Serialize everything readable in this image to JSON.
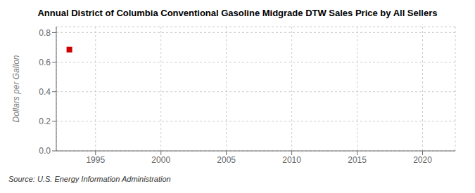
{
  "chart_data": {
    "type": "scatter",
    "title": "Annual District of Columbia Conventional Gasoline Midgrade DTW Sales Price by All Sellers",
    "ylabel": "Dollars per Gallon",
    "annotation": "Source: U.S. Energy Information Administration",
    "x": [
      1993
    ],
    "values": [
      0.685
    ],
    "color": "#cc0000",
    "marker": "square",
    "xlim": [
      1992,
      2022.5
    ],
    "xticks": [
      1995,
      2000,
      2005,
      2010,
      2015,
      2020
    ],
    "ylim": [
      0.0,
      0.84
    ],
    "yticks": [
      {
        "value": 0.0,
        "label": "0.0"
      },
      0.2,
      0.4,
      0.6,
      0.8
    ],
    "grid": true
  }
}
